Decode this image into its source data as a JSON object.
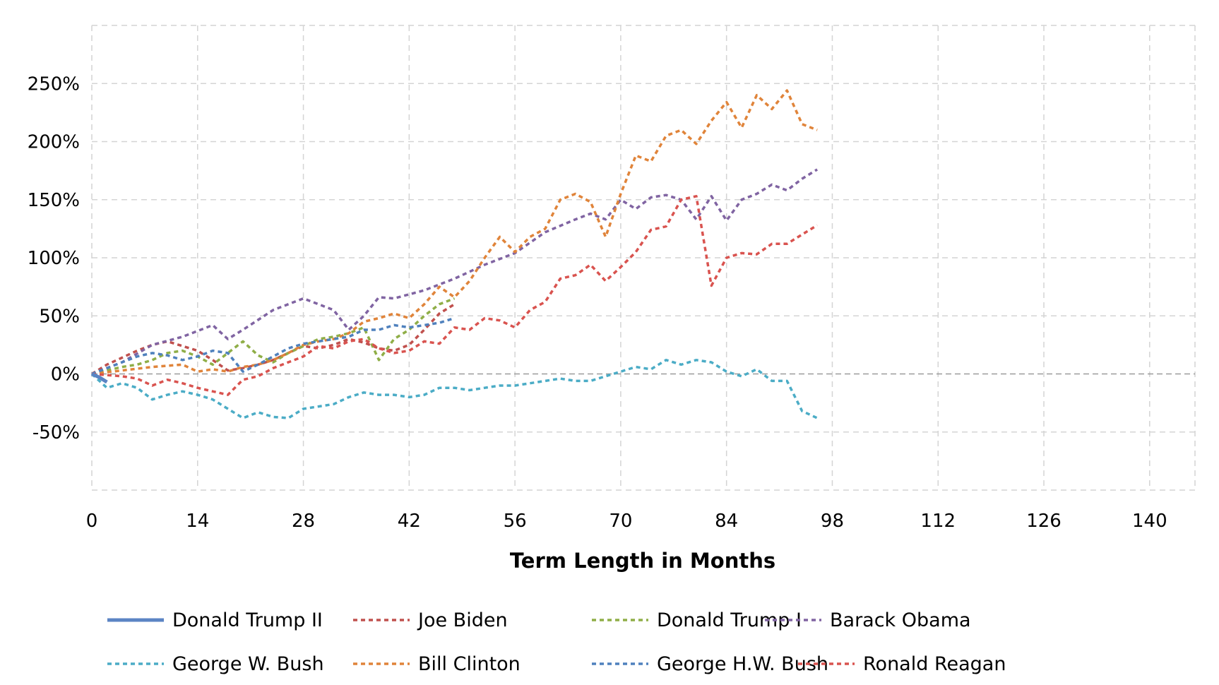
{
  "chart_data": {
    "type": "line",
    "title": "",
    "xlabel": "Term Length in Months",
    "ylabel": "",
    "xlim": [
      0,
      146
    ],
    "ylim": [
      -100,
      300
    ],
    "x_ticks": [
      0,
      14,
      28,
      42,
      56,
      70,
      84,
      98,
      112,
      126,
      140
    ],
    "y_ticks": [
      -50,
      0,
      50,
      100,
      150,
      200,
      250
    ],
    "y_tick_labels": [
      "-50%",
      "0%",
      "50%",
      "100%",
      "150%",
      "200%",
      "250%"
    ],
    "grid": true,
    "legend_position": "bottom",
    "series": [
      {
        "name": "Donald Trump II",
        "color": "#5b84c4",
        "style": "solid",
        "x": [
          0,
          1,
          2
        ],
        "y": [
          0,
          -3,
          -7
        ]
      },
      {
        "name": "Joe Biden",
        "color": "#c0504d",
        "style": "dashed",
        "x": [
          0,
          2,
          4,
          6,
          8,
          10,
          12,
          14,
          16,
          18,
          20,
          22,
          24,
          26,
          28,
          30,
          32,
          34,
          36,
          38,
          40,
          42,
          44,
          46,
          48
        ],
        "y": [
          0,
          8,
          14,
          20,
          25,
          28,
          24,
          20,
          12,
          3,
          5,
          8,
          12,
          18,
          24,
          22,
          25,
          30,
          27,
          22,
          20,
          25,
          38,
          52,
          60
        ]
      },
      {
        "name": "Donald Trump I",
        "color": "#8fae47",
        "style": "dashed",
        "x": [
          0,
          2,
          4,
          6,
          8,
          10,
          12,
          14,
          16,
          18,
          20,
          22,
          24,
          26,
          28,
          30,
          32,
          34,
          36,
          38,
          40,
          42,
          44,
          46,
          48
        ],
        "y": [
          0,
          3,
          6,
          8,
          12,
          18,
          20,
          15,
          8,
          18,
          28,
          16,
          10,
          18,
          24,
          30,
          32,
          35,
          40,
          12,
          30,
          38,
          50,
          60,
          65
        ]
      },
      {
        "name": "Barack Obama",
        "color": "#8064a2",
        "style": "dashed",
        "x": [
          0,
          4,
          8,
          12,
          16,
          18,
          20,
          24,
          28,
          32,
          34,
          36,
          38,
          40,
          44,
          48,
          52,
          56,
          60,
          64,
          66,
          68,
          70,
          72,
          74,
          76,
          78,
          80,
          82,
          84,
          86,
          88,
          90,
          92,
          94,
          96
        ],
        "y": [
          0,
          10,
          25,
          32,
          42,
          30,
          38,
          55,
          65,
          55,
          38,
          50,
          66,
          65,
          72,
          82,
          94,
          104,
          122,
          133,
          138,
          133,
          150,
          142,
          152,
          154,
          150,
          133,
          153,
          132,
          150,
          155,
          163,
          158,
          168,
          176
        ]
      },
      {
        "name": "George W. Bush",
        "color": "#4bacc6",
        "style": "dashed",
        "x": [
          0,
          2,
          4,
          6,
          8,
          10,
          12,
          14,
          16,
          18,
          20,
          22,
          24,
          26,
          28,
          30,
          32,
          34,
          36,
          38,
          40,
          42,
          44,
          46,
          48,
          50,
          52,
          54,
          56,
          58,
          60,
          62,
          64,
          66,
          68,
          70,
          72,
          74,
          76,
          78,
          80,
          82,
          84,
          86,
          88,
          90,
          92,
          94,
          96
        ],
        "y": [
          0,
          -12,
          -8,
          -12,
          -22,
          -18,
          -15,
          -18,
          -22,
          -30,
          -38,
          -33,
          -37,
          -38,
          -30,
          -28,
          -26,
          -20,
          -16,
          -18,
          -18,
          -20,
          -18,
          -12,
          -12,
          -14,
          -12,
          -10,
          -10,
          -8,
          -6,
          -4,
          -6,
          -6,
          -2,
          2,
          6,
          4,
          12,
          8,
          12,
          10,
          2,
          -2,
          4,
          -6,
          -6,
          -32,
          -38
        ]
      },
      {
        "name": "Bill Clinton",
        "color": "#e0843a",
        "style": "dashed",
        "x": [
          0,
          4,
          8,
          12,
          14,
          16,
          18,
          20,
          22,
          24,
          26,
          28,
          30,
          32,
          34,
          36,
          38,
          40,
          42,
          44,
          46,
          48,
          50,
          52,
          54,
          56,
          58,
          60,
          62,
          64,
          66,
          68,
          70,
          72,
          74,
          76,
          78,
          80,
          82,
          84,
          86,
          88,
          90,
          92,
          94,
          96
        ],
        "y": [
          0,
          3,
          6,
          8,
          2,
          4,
          2,
          6,
          8,
          12,
          18,
          25,
          28,
          30,
          35,
          45,
          48,
          52,
          48,
          60,
          75,
          66,
          80,
          100,
          118,
          105,
          118,
          125,
          150,
          155,
          148,
          118,
          155,
          188,
          183,
          205,
          210,
          198,
          218,
          234,
          212,
          240,
          228,
          244,
          215,
          210
        ]
      },
      {
        "name": "George H.W. Bush",
        "color": "#4f81bd",
        "style": "dashed",
        "x": [
          0,
          2,
          4,
          6,
          8,
          10,
          12,
          14,
          16,
          18,
          20,
          22,
          24,
          26,
          28,
          30,
          32,
          34,
          36,
          38,
          40,
          42,
          44,
          46,
          48
        ],
        "y": [
          0,
          5,
          10,
          15,
          18,
          16,
          12,
          15,
          20,
          18,
          2,
          8,
          15,
          22,
          26,
          28,
          30,
          32,
          38,
          38,
          42,
          40,
          42,
          44,
          48
        ]
      },
      {
        "name": "Ronald Reagan",
        "color": "#d9534f",
        "style": "dashed",
        "x": [
          0,
          4,
          6,
          8,
          10,
          12,
          14,
          16,
          18,
          20,
          22,
          24,
          26,
          28,
          30,
          32,
          34,
          36,
          38,
          40,
          42,
          44,
          46,
          48,
          50,
          52,
          54,
          56,
          58,
          60,
          62,
          64,
          66,
          68,
          70,
          72,
          74,
          76,
          78,
          80,
          82,
          84,
          86,
          88,
          90,
          92,
          94,
          96
        ],
        "y": [
          0,
          -2,
          -4,
          -10,
          -5,
          -8,
          -12,
          -15,
          -18,
          -5,
          -2,
          5,
          10,
          15,
          24,
          22,
          28,
          30,
          22,
          18,
          20,
          28,
          26,
          40,
          38,
          48,
          46,
          40,
          55,
          62,
          82,
          85,
          94,
          80,
          92,
          105,
          124,
          127,
          150,
          153,
          76,
          100,
          104,
          103,
          112,
          112,
          120,
          128
        ]
      }
    ]
  }
}
